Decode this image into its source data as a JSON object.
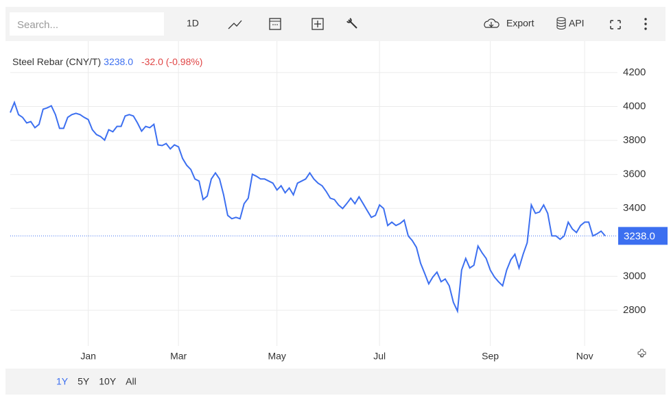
{
  "toolbar": {
    "search_placeholder": "Search...",
    "interval": "1D",
    "export": "Export",
    "api": "API"
  },
  "ranges": [
    "1Y",
    "5Y",
    "10Y",
    "All"
  ],
  "chart_data": {
    "type": "line",
    "title": "Steel Rebar (CNY/T)",
    "last_price": {
      "value": 3238,
      "label": "3238.0"
    },
    "change": "-32.0 (-0.98%)",
    "series": [
      {
        "name": "Steel Rebar",
        "color": "#3c6ff0",
        "values": [
          3964,
          4024,
          3952,
          3936,
          3903,
          3911,
          3875,
          3895,
          3984,
          3992,
          4004,
          3952,
          3871,
          3871,
          3936,
          3952,
          3960,
          3952,
          3936,
          3923,
          3863,
          3835,
          3823,
          3802,
          3863,
          3851,
          3883,
          3883,
          3944,
          3952,
          3944,
          3903,
          3855,
          3883,
          3875,
          3895,
          3774,
          3770,
          3782,
          3750,
          3774,
          3762,
          3694,
          3654,
          3629,
          3573,
          3561,
          3452,
          3472,
          3573,
          3609,
          3573,
          3480,
          3359,
          3339,
          3347,
          3339,
          3428,
          3460,
          3601,
          3589,
          3573,
          3573,
          3561,
          3549,
          3508,
          3533,
          3492,
          3520,
          3480,
          3549,
          3561,
          3573,
          3609,
          3573,
          3549,
          3533,
          3500,
          3460,
          3452,
          3420,
          3399,
          3428,
          3460,
          3428,
          3468,
          3428,
          3387,
          3347,
          3359,
          3420,
          3399,
          3299,
          3319,
          3299,
          3311,
          3331,
          3238,
          3210,
          3170,
          3077,
          3017,
          2956,
          2996,
          3025,
          2968,
          2984,
          2944,
          2847,
          2795,
          3037,
          3105,
          3049,
          3065,
          3178,
          3138,
          3105,
          3037,
          2996,
          2968,
          2944,
          3037,
          3097,
          3130,
          3049,
          3130,
          3198,
          3420,
          3371,
          3379,
          3420,
          3371,
          3238,
          3238,
          3218,
          3238,
          3319,
          3279,
          3258,
          3299,
          3319,
          3319,
          3238,
          3250,
          3266,
          3238
        ]
      }
    ],
    "xlim": [
      0,
      148
    ],
    "xticks": [
      {
        "value": 19,
        "label": "Jan"
      },
      {
        "value": 41,
        "label": "Mar"
      },
      {
        "value": 65,
        "label": "May"
      },
      {
        "value": 90,
        "label": "Jul"
      },
      {
        "value": 117,
        "label": "Sep"
      },
      {
        "value": 140,
        "label": "Nov"
      }
    ],
    "ylim": [
      2590,
      4385
    ],
    "yticks": [
      2800,
      3000,
      3400,
      3600,
      3800,
      4000,
      4200
    ],
    "grid": true
  }
}
